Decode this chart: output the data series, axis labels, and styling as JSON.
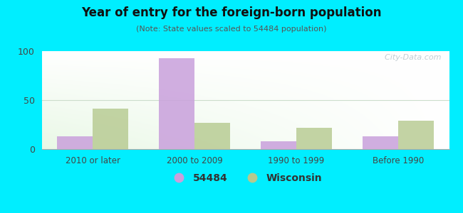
{
  "title": "Year of entry for the foreign-born population",
  "subtitle": "(Note: State values scaled to 54484 population)",
  "categories": [
    "2010 or later",
    "2000 to 2009",
    "1990 to 1999",
    "Before 1990"
  ],
  "values_54484": [
    13,
    93,
    8,
    13
  ],
  "values_wisconsin": [
    41,
    27,
    22,
    29
  ],
  "color_54484": "#c9a0dc",
  "color_wisconsin": "#b5c98e",
  "background_outer": "#00eeff",
  "ylim": [
    0,
    100
  ],
  "yticks": [
    0,
    50,
    100
  ],
  "bar_width": 0.35,
  "legend_54484": "54484",
  "legend_wisconsin": "Wisconsin",
  "watermark": "  City-Data.com"
}
